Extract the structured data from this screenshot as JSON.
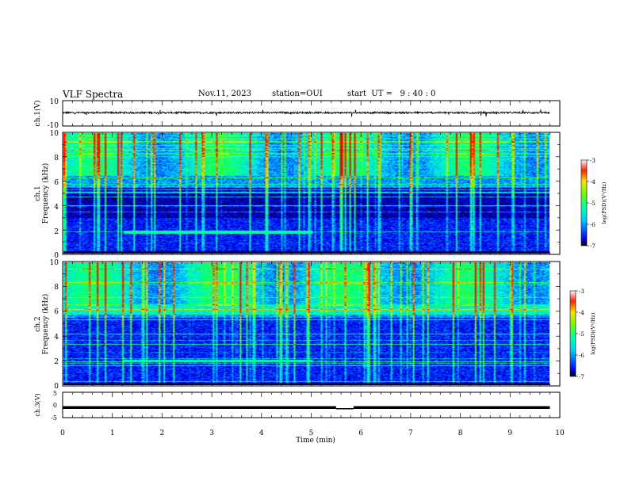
{
  "header": {
    "title": "VLF Spectra",
    "date": "Nov.11, 2023",
    "station": "station=OUI",
    "start_ut": "start  UT =   9 : 40 : 0"
  },
  "chart_data": [
    {
      "type": "line",
      "panel": "ch1-waveform",
      "ylabel": "ch.1(V)",
      "ylim": [
        -10,
        10
      ],
      "y_ticks": [
        "10",
        "-10"
      ],
      "x_range": [
        0,
        10
      ],
      "trace_range_min": [
        0,
        9.8
      ],
      "trace_level_V": 0.5,
      "trace_spread_V": 1.5,
      "color": "#000000"
    },
    {
      "type": "heatmap",
      "panel": "ch1-spectrogram",
      "ylabel": "ch.1\nFrequency (kHz)",
      "ylim": [
        0,
        10
      ],
      "y_ticks": [
        "0",
        "2",
        "4",
        "6",
        "8",
        "10"
      ],
      "x_range": [
        0,
        10
      ],
      "data_range_min": [
        0,
        9.8
      ],
      "colorbar": {
        "label": "log(PSD)(V²/Hz)",
        "range": [
          -7,
          -3
        ],
        "ticks": [
          "-3",
          "-4",
          "-5",
          "-6",
          "-7"
        ]
      },
      "features": [
        {
          "kind": "tone",
          "freq_kHz": 1.8,
          "from_min": 1.2,
          "to_min": 5.0
        },
        {
          "kind": "band",
          "freq_kHz": [
            6.5,
            10
          ],
          "level": "high"
        },
        {
          "kind": "band",
          "freq_kHz": [
            3,
            5.5
          ],
          "level": "low"
        }
      ]
    },
    {
      "type": "heatmap",
      "panel": "ch2-spectrogram",
      "ylabel": "ch.2\nFrequency (kHz)",
      "ylim": [
        0,
        10
      ],
      "y_ticks": [
        "0",
        "2",
        "4",
        "6",
        "8",
        "10"
      ],
      "x_range": [
        0,
        10
      ],
      "data_range_min": [
        0,
        9.8
      ],
      "colorbar": {
        "label": "log(PSD)(V²/Hz)",
        "range": [
          -7,
          -3
        ],
        "ticks": [
          "-3",
          "-4",
          "-5",
          "-6",
          "-7"
        ]
      },
      "features": [
        {
          "kind": "tone",
          "freq_kHz": 2.0,
          "from_min": 1.2,
          "to_min": 5.0
        },
        {
          "kind": "band",
          "freq_kHz": [
            6,
            10
          ],
          "level": "high"
        }
      ]
    },
    {
      "type": "line",
      "panel": "ch3-waveform",
      "ylabel": "ch.3(V)",
      "ylim": [
        -5,
        5
      ],
      "y_ticks": [
        "5",
        "0",
        "-5"
      ],
      "x_range": [
        0,
        10
      ],
      "trace_range_min": [
        0,
        9.8
      ],
      "trace_level_V": -1,
      "gap_min": [
        5.5,
        5.85
      ],
      "color": "#000000"
    }
  ],
  "x_axis": {
    "label": "Time (min)",
    "ticks": [
      "0",
      "1",
      "2",
      "3",
      "4",
      "5",
      "6",
      "7",
      "8",
      "9",
      "10"
    ]
  },
  "colors": {
    "colormap": [
      "#00008b",
      "#0000ff",
      "#0064ff",
      "#00c8ff",
      "#00ffc8",
      "#00ff64",
      "#64ff00",
      "#c8ff00",
      "#ffc800",
      "#ff6400",
      "#ff0000",
      "#ffffff"
    ]
  }
}
